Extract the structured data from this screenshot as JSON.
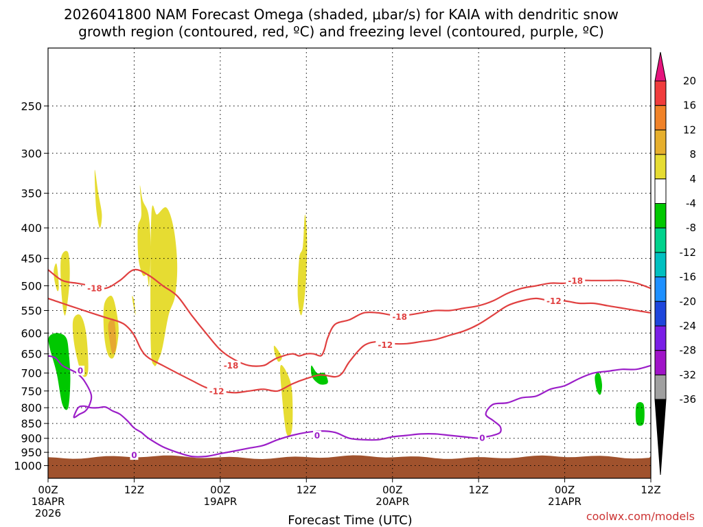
{
  "header": {
    "title_line1": "2026041800 NAM Forecast Omega (shaded, μbar/s) for KAIA with dendritic snow",
    "title_line2": "growth region (contoured, red, ºC) and freezing level (contoured, purple, ºC)"
  },
  "credit": "coolwx.com/models",
  "chart_data": {
    "type": "time-height cross section",
    "station": "KAIA",
    "model_run": "2026041800",
    "xlabel": "Forecast Time (UTC)",
    "ylabel": "",
    "x_range_hours": [
      0,
      84
    ],
    "y_range_mb": [
      200,
      1050
    ],
    "x_ticks": [
      {
        "hour": 0,
        "lines": [
          "00Z",
          "18APR",
          "2026"
        ]
      },
      {
        "hour": 12,
        "lines": [
          "12Z"
        ]
      },
      {
        "hour": 24,
        "lines": [
          "00Z",
          "19APR"
        ]
      },
      {
        "hour": 36,
        "lines": [
          "12Z"
        ]
      },
      {
        "hour": 48,
        "lines": [
          "00Z",
          "20APR"
        ]
      },
      {
        "hour": 60,
        "lines": [
          "12Z"
        ]
      },
      {
        "hour": 72,
        "lines": [
          "00Z",
          "21APR"
        ]
      },
      {
        "hour": 84,
        "lines": [
          "12Z"
        ]
      }
    ],
    "y_ticks": [
      {
        "p": 250,
        "label": "250"
      },
      {
        "p": 300,
        "label": "300"
      },
      {
        "p": 350,
        "label": "350"
      },
      {
        "p": 400,
        "label": "400"
      },
      {
        "p": 450,
        "label": "450"
      },
      {
        "p": 500,
        "label": "500"
      },
      {
        "p": 550,
        "label": "550"
      },
      {
        "p": 600,
        "label": "600"
      },
      {
        "p": 650,
        "label": "650"
      },
      {
        "p": 700,
        "label": "700"
      },
      {
        "p": 750,
        "label": "750"
      },
      {
        "p": 800,
        "label": "800"
      },
      {
        "p": 850,
        "label": "850"
      },
      {
        "p": 900,
        "label": "900"
      },
      {
        "p": 950,
        "label": "950"
      },
      {
        "p": 1000,
        "label": "1000"
      }
    ],
    "colorbar": {
      "levels": [
        "20",
        "16",
        "12",
        "8",
        "4",
        "-4",
        "-8",
        "-12",
        "-16",
        "-20",
        "-24",
        "-28",
        "-32",
        "-36"
      ],
      "bins": [
        {
          "range": "16 to 20",
          "color": "#f03c3c"
        },
        {
          "range": "12 to 16",
          "color": "#f08228"
        },
        {
          "range": "8 to 12",
          "color": "#e6af2d"
        },
        {
          "range": "4 to 8",
          "color": "#e6dc32"
        },
        {
          "range": "-4 to 4",
          "color": "#ffffff"
        },
        {
          "range": "-8 to -4",
          "color": "#00c800"
        },
        {
          "range": "-12 to -8",
          "color": "#00d28c"
        },
        {
          "range": "-16 to -12",
          "color": "#00c0c0"
        },
        {
          "range": "-20 to -16",
          "color": "#1e90ff"
        },
        {
          "range": "-24 to -20",
          "color": "#1e46dc"
        },
        {
          "range": "-28 to -24",
          "color": "#7a1ee6"
        },
        {
          "range": "-32 to -28",
          "color": "#a014c8"
        },
        {
          "range": "-36 to -32",
          "color": "#a0a0a0"
        }
      ],
      "top_arrow_color": "#e6147d",
      "bottom_arrow_color": "#000000"
    },
    "terrain": {
      "color": "#a0522d",
      "surface_pressure_mb": 968
    },
    "omega_regions": [
      {
        "color": "#e6dc32",
        "t": [
          0.8,
          1.2,
          1.5,
          1.3,
          0.9
        ],
        "p": [
          470,
          460,
          500,
          510,
          490
        ]
      },
      {
        "color": "#e6dc32",
        "t": [
          1.8,
          2.8,
          3.0,
          2.4,
          1.9
        ],
        "p": [
          450,
          440,
          490,
          560,
          520
        ]
      },
      {
        "color": "#e6dc32",
        "t": [
          3.5,
          4.5,
          5.3,
          5.6,
          5.0,
          4.3,
          3.6
        ],
        "p": [
          570,
          560,
          600,
          690,
          710,
          680,
          620
        ]
      },
      {
        "color": "#e6dc32",
        "t": [
          6.5,
          7.0,
          7.5,
          7.2,
          6.7
        ],
        "p": [
          320,
          350,
          380,
          400,
          370
        ]
      },
      {
        "color": "#e6dc32",
        "t": [
          7.8,
          8.6,
          9.2,
          9.8,
          9.7,
          9.1,
          8.3,
          7.8
        ],
        "p": [
          540,
          520,
          530,
          580,
          620,
          660,
          650,
          600
        ]
      },
      {
        "color": "#e6a832",
        "t": [
          8.4,
          9.2,
          9.5,
          9.0,
          8.6
        ],
        "p": [
          580,
          570,
          630,
          650,
          620
        ]
      },
      {
        "color": "#e6dc32",
        "t": [
          11.7,
          12.0,
          12.2,
          11.9
        ],
        "p": [
          520,
          530,
          560,
          540
        ]
      },
      {
        "color": "#e6dc32",
        "t": [
          12.8,
          13.2,
          14.0,
          14.3,
          14.1,
          13.8,
          13.2,
          12.6,
          12.5,
          13.0
        ],
        "p": [
          340,
          360,
          380,
          430,
          500,
          480,
          480,
          450,
          400,
          380
        ]
      },
      {
        "color": "#e6dc32",
        "t": [
          14.4,
          15.2,
          16.5,
          17.5,
          18.0,
          17.7,
          16.8,
          16.0,
          15.5,
          14.8,
          14.3
        ],
        "p": [
          380,
          380,
          370,
          400,
          460,
          520,
          560,
          630,
          660,
          680,
          620
        ]
      },
      {
        "color": "#e6dc32",
        "t": [
          31.5,
          32.2,
          32.6,
          32.1,
          31.6
        ],
        "p": [
          630,
          645,
          660,
          670,
          650
        ]
      },
      {
        "color": "#e6dc32",
        "t": [
          32.4,
          33.3,
          34.0,
          34.0,
          33.2,
          32.5
        ],
        "p": [
          680,
          700,
          750,
          870,
          880,
          740
        ]
      },
      {
        "color": "#e6dc32",
        "t": [
          35.0,
          35.5,
          35.8,
          36.1,
          35.9,
          35.3,
          34.8
        ],
        "p": [
          450,
          430,
          380,
          420,
          500,
          560,
          520
        ]
      },
      {
        "color": "#00c800",
        "t": [
          0.1,
          1.2,
          2.5,
          2.9,
          3.1,
          2.8,
          2.0,
          1.2,
          0.3
        ],
        "p": [
          610,
          600,
          610,
          650,
          720,
          800,
          790,
          700,
          640
        ]
      },
      {
        "color": "#00c800",
        "t": [
          36.7,
          37.5,
          38.5,
          39.0,
          38.8,
          37.8,
          36.8
        ],
        "p": [
          680,
          700,
          700,
          720,
          730,
          730,
          710
        ]
      },
      {
        "color": "#00c800",
        "t": [
          76.2,
          76.8,
          77.2,
          77.0,
          76.5
        ],
        "p": [
          710,
          700,
          730,
          760,
          750
        ]
      },
      {
        "color": "#00c800",
        "t": [
          82.0,
          83.0,
          83.0,
          82.0
        ],
        "p": [
          790,
          790,
          850,
          850
        ]
      }
    ],
    "temperature_contours": [
      {
        "label": "-18",
        "color": "#e04040",
        "t": [
          0,
          2,
          4,
          6,
          8,
          10,
          12,
          14,
          16,
          18,
          20,
          22,
          24,
          26,
          28,
          30,
          31,
          32,
          34,
          35,
          36,
          37,
          38,
          38.5,
          39,
          40,
          42,
          44,
          46,
          48,
          50,
          52,
          54,
          56,
          58,
          60,
          62,
          64,
          66,
          68,
          70,
          72,
          74,
          76,
          78,
          80,
          82,
          84
        ],
        "p": [
          470,
          490,
          495,
          500,
          505,
          490,
          470,
          480,
          500,
          520,
          560,
          600,
          640,
          665,
          680,
          680,
          670,
          660,
          650,
          655,
          650,
          650,
          655,
          640,
          610,
          580,
          570,
          555,
          555,
          560,
          560,
          555,
          550,
          550,
          545,
          540,
          530,
          515,
          505,
          500,
          495,
          495,
          490,
          490,
          490,
          490,
          495,
          505
        ],
        "label_pos": [
          {
            "t": 6.5,
            "p": 505
          },
          {
            "t": 25.5,
            "p": 680
          },
          {
            "t": 49,
            "p": 563
          },
          {
            "t": 73.5,
            "p": 490
          }
        ]
      },
      {
        "label": "-12",
        "color": "#e04040",
        "t": [
          0,
          2,
          4,
          6,
          8,
          10,
          11,
          12,
          13,
          14,
          16,
          18,
          20,
          22,
          24,
          26,
          28,
          30,
          32,
          34,
          36,
          38,
          40,
          41,
          42,
          44,
          46,
          48,
          50,
          52,
          54,
          56,
          58,
          60,
          62,
          64,
          66,
          68,
          70,
          72,
          74,
          76,
          78,
          80,
          82,
          84
        ],
        "p": [
          525,
          535,
          545,
          555,
          565,
          575,
          585,
          605,
          640,
          660,
          680,
          700,
          720,
          740,
          750,
          755,
          750,
          745,
          750,
          730,
          715,
          705,
          710,
          700,
          670,
          630,
          620,
          625,
          625,
          620,
          615,
          605,
          595,
          580,
          560,
          540,
          530,
          525,
          530,
          530,
          535,
          535,
          540,
          545,
          550,
          555
        ],
        "label_pos": [
          {
            "t": 23.5,
            "p": 750
          },
          {
            "t": 47,
            "p": 628
          },
          {
            "t": 70.5,
            "p": 530
          }
        ]
      },
      {
        "label": "0",
        "color": "#9b1ec8",
        "t": [
          0,
          1,
          2,
          3,
          4,
          5,
          6,
          5.8,
          5.2,
          4.4,
          3.6,
          4.2,
          5,
          6,
          7,
          8,
          9,
          10,
          11,
          12,
          13,
          14,
          16,
          18,
          20,
          22,
          24,
          26,
          28,
          30,
          32,
          34,
          36,
          38,
          40,
          42,
          44,
          46,
          48,
          50,
          52,
          54,
          56,
          58,
          60,
          61,
          62,
          63,
          63,
          62,
          61,
          62,
          64,
          66,
          68,
          70,
          72,
          74,
          76,
          78,
          80,
          82,
          84
        ],
        "p": [
          655,
          660,
          680,
          690,
          700,
          720,
          760,
          790,
          810,
          820,
          830,
          800,
          795,
          800,
          800,
          798,
          810,
          820,
          840,
          865,
          880,
          900,
          930,
          950,
          965,
          965,
          955,
          945,
          935,
          925,
          905,
          890,
          880,
          875,
          880,
          900,
          905,
          905,
          895,
          890,
          885,
          885,
          890,
          895,
          900,
          895,
          890,
          880,
          860,
          840,
          820,
          790,
          785,
          770,
          765,
          745,
          735,
          715,
          700,
          695,
          690,
          690,
          680
        ],
        "label_pos": [
          {
            "t": 4.5,
            "p": 693
          },
          {
            "t": 12,
            "p": 960
          },
          {
            "t": 37.5,
            "p": 890
          },
          {
            "t": 60.5,
            "p": 898
          }
        ]
      }
    ]
  }
}
